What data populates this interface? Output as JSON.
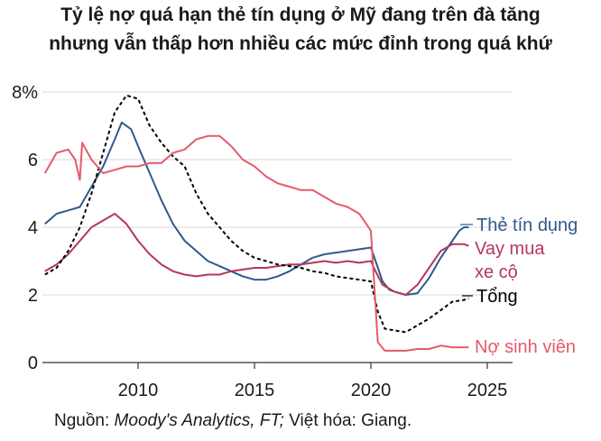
{
  "title_line1": "Tỷ lệ nợ quá hạn thẻ tín dụng ở Mỹ đang trên đà tăng",
  "title_line2": "nhưng vẫn thấp hơn nhiều các mức đỉnh trong quá khứ",
  "source": {
    "prefix": "Nguồn: ",
    "italic": "Moody's Analytics, FT;",
    "suffix": " Việt hóa: Giang."
  },
  "colors": {
    "credit_card": "#2f5a8c",
    "auto_loan": "#b5375a",
    "student_loan": "#e35b6b",
    "total": "#000000",
    "grid": "#d9d9d9",
    "axis": "#333333"
  },
  "chart_data": {
    "type": "line",
    "title": "Tỷ lệ nợ quá hạn thẻ tín dụng ở Mỹ đang trên đà tăng nhưng vẫn thấp hơn nhiều các mức đỉnh trong quá khứ",
    "xlabel": "",
    "ylabel": "",
    "xlim": [
      2006,
      2025.5
    ],
    "ylim": [
      0,
      8
    ],
    "x_ticks": [
      2010,
      2015,
      2020,
      2025
    ],
    "y_ticks": [
      0,
      2,
      4,
      6,
      8
    ],
    "y_tick_labels": [
      "0",
      "2",
      "4",
      "6",
      "8%"
    ],
    "grid": "horizontal",
    "legend": "inline labels at right end of lines",
    "series": [
      {
        "name": "Thẻ tín dụng",
        "key": "credit_card",
        "dash": false,
        "points": [
          [
            2006,
            4.1
          ],
          [
            2006.5,
            4.4
          ],
          [
            2007,
            4.5
          ],
          [
            2007.5,
            4.6
          ],
          [
            2008,
            5.2
          ],
          [
            2008.5,
            5.8
          ],
          [
            2009,
            6.6
          ],
          [
            2009.3,
            7.1
          ],
          [
            2009.7,
            6.9
          ],
          [
            2010,
            6.4
          ],
          [
            2010.5,
            5.6
          ],
          [
            2011,
            4.8
          ],
          [
            2011.5,
            4.1
          ],
          [
            2012,
            3.6
          ],
          [
            2012.5,
            3.3
          ],
          [
            2013,
            3.0
          ],
          [
            2013.5,
            2.85
          ],
          [
            2014,
            2.7
          ],
          [
            2014.5,
            2.55
          ],
          [
            2015,
            2.45
          ],
          [
            2015.5,
            2.45
          ],
          [
            2016,
            2.55
          ],
          [
            2016.5,
            2.7
          ],
          [
            2017,
            2.9
          ],
          [
            2017.5,
            3.1
          ],
          [
            2018,
            3.2
          ],
          [
            2018.5,
            3.25
          ],
          [
            2019,
            3.3
          ],
          [
            2019.5,
            3.35
          ],
          [
            2020,
            3.4
          ],
          [
            2020.2,
            3.0
          ],
          [
            2020.5,
            2.4
          ],
          [
            2020.8,
            2.15
          ],
          [
            2021,
            2.1
          ],
          [
            2021.5,
            2.0
          ],
          [
            2022,
            2.05
          ],
          [
            2022.5,
            2.5
          ],
          [
            2023,
            3.1
          ],
          [
            2023.5,
            3.6
          ],
          [
            2023.8,
            3.9
          ],
          [
            2024,
            4.0
          ],
          [
            2024.2,
            4.0
          ]
        ]
      },
      {
        "name": "Vay mua xe cộ",
        "key": "auto_loan",
        "dash": false,
        "points": [
          [
            2006,
            2.7
          ],
          [
            2006.5,
            2.9
          ],
          [
            2007,
            3.2
          ],
          [
            2007.5,
            3.6
          ],
          [
            2008,
            4.0
          ],
          [
            2008.5,
            4.2
          ],
          [
            2009,
            4.4
          ],
          [
            2009.5,
            4.1
          ],
          [
            2010,
            3.6
          ],
          [
            2010.5,
            3.2
          ],
          [
            2011,
            2.9
          ],
          [
            2011.5,
            2.7
          ],
          [
            2012,
            2.6
          ],
          [
            2012.5,
            2.55
          ],
          [
            2013,
            2.6
          ],
          [
            2013.5,
            2.6
          ],
          [
            2014,
            2.7
          ],
          [
            2014.5,
            2.75
          ],
          [
            2015,
            2.8
          ],
          [
            2015.5,
            2.8
          ],
          [
            2016,
            2.85
          ],
          [
            2016.5,
            2.9
          ],
          [
            2017,
            2.9
          ],
          [
            2017.5,
            2.95
          ],
          [
            2018,
            3.0
          ],
          [
            2018.5,
            2.95
          ],
          [
            2019,
            3.0
          ],
          [
            2019.5,
            2.95
          ],
          [
            2020,
            3.0
          ],
          [
            2020.2,
            2.7
          ],
          [
            2020.5,
            2.3
          ],
          [
            2021,
            2.1
          ],
          [
            2021.5,
            2.0
          ],
          [
            2022,
            2.3
          ],
          [
            2022.5,
            2.8
          ],
          [
            2023,
            3.3
          ],
          [
            2023.5,
            3.5
          ],
          [
            2024,
            3.5
          ],
          [
            2024.2,
            3.45
          ]
        ]
      },
      {
        "name": "Tổng",
        "key": "total",
        "dash": true,
        "points": [
          [
            2006,
            2.6
          ],
          [
            2006.5,
            2.8
          ],
          [
            2007,
            3.3
          ],
          [
            2007.5,
            4.0
          ],
          [
            2008,
            5.0
          ],
          [
            2008.5,
            6.2
          ],
          [
            2009,
            7.4
          ],
          [
            2009.5,
            7.9
          ],
          [
            2010,
            7.8
          ],
          [
            2010.5,
            7.0
          ],
          [
            2011,
            6.5
          ],
          [
            2011.5,
            6.1
          ],
          [
            2012,
            5.8
          ],
          [
            2012.5,
            5.0
          ],
          [
            2013,
            4.4
          ],
          [
            2013.5,
            4.0
          ],
          [
            2014,
            3.6
          ],
          [
            2014.5,
            3.3
          ],
          [
            2015,
            3.1
          ],
          [
            2015.5,
            3.0
          ],
          [
            2016,
            2.9
          ],
          [
            2016.5,
            2.85
          ],
          [
            2017,
            2.8
          ],
          [
            2017.5,
            2.7
          ],
          [
            2018,
            2.65
          ],
          [
            2018.5,
            2.55
          ],
          [
            2019,
            2.5
          ],
          [
            2019.5,
            2.45
          ],
          [
            2020,
            2.4
          ],
          [
            2020.3,
            1.5
          ],
          [
            2020.6,
            1.0
          ],
          [
            2021,
            0.95
          ],
          [
            2021.5,
            0.9
          ],
          [
            2022,
            1.1
          ],
          [
            2022.5,
            1.3
          ],
          [
            2023,
            1.55
          ],
          [
            2023.5,
            1.8
          ],
          [
            2024,
            1.85
          ],
          [
            2024.2,
            1.9
          ]
        ]
      },
      {
        "name": "Nợ sinh viên",
        "key": "student_loan",
        "dash": false,
        "points": [
          [
            2006,
            5.6
          ],
          [
            2006.5,
            6.2
          ],
          [
            2007,
            6.3
          ],
          [
            2007.3,
            6.0
          ],
          [
            2007.5,
            5.4
          ],
          [
            2007.6,
            6.5
          ],
          [
            2008,
            6.0
          ],
          [
            2008.5,
            5.6
          ],
          [
            2009,
            5.7
          ],
          [
            2009.5,
            5.8
          ],
          [
            2010,
            5.8
          ],
          [
            2010.5,
            5.9
          ],
          [
            2011,
            5.9
          ],
          [
            2011.5,
            6.2
          ],
          [
            2012,
            6.3
          ],
          [
            2012.5,
            6.6
          ],
          [
            2013,
            6.7
          ],
          [
            2013.5,
            6.7
          ],
          [
            2014,
            6.4
          ],
          [
            2014.5,
            6.0
          ],
          [
            2015,
            5.8
          ],
          [
            2015.5,
            5.5
          ],
          [
            2016,
            5.3
          ],
          [
            2016.5,
            5.2
          ],
          [
            2017,
            5.1
          ],
          [
            2017.5,
            5.1
          ],
          [
            2018,
            4.9
          ],
          [
            2018.5,
            4.7
          ],
          [
            2019,
            4.6
          ],
          [
            2019.5,
            4.4
          ],
          [
            2020,
            3.9
          ],
          [
            2020.3,
            0.6
          ],
          [
            2020.6,
            0.35
          ],
          [
            2021,
            0.35
          ],
          [
            2021.5,
            0.35
          ],
          [
            2022,
            0.4
          ],
          [
            2022.5,
            0.4
          ],
          [
            2023,
            0.5
          ],
          [
            2023.5,
            0.45
          ],
          [
            2024,
            0.45
          ],
          [
            2024.2,
            0.45
          ]
        ]
      }
    ],
    "labels": [
      {
        "key": "credit_card",
        "lines": [
          "Thẻ tín dụng"
        ]
      },
      {
        "key": "auto_loan",
        "lines": [
          "Vay mua",
          "xe cộ"
        ]
      },
      {
        "key": "total",
        "lines": [
          "Tổng"
        ]
      },
      {
        "key": "student_loan",
        "lines": [
          "Nợ sinh viên"
        ]
      }
    ]
  }
}
